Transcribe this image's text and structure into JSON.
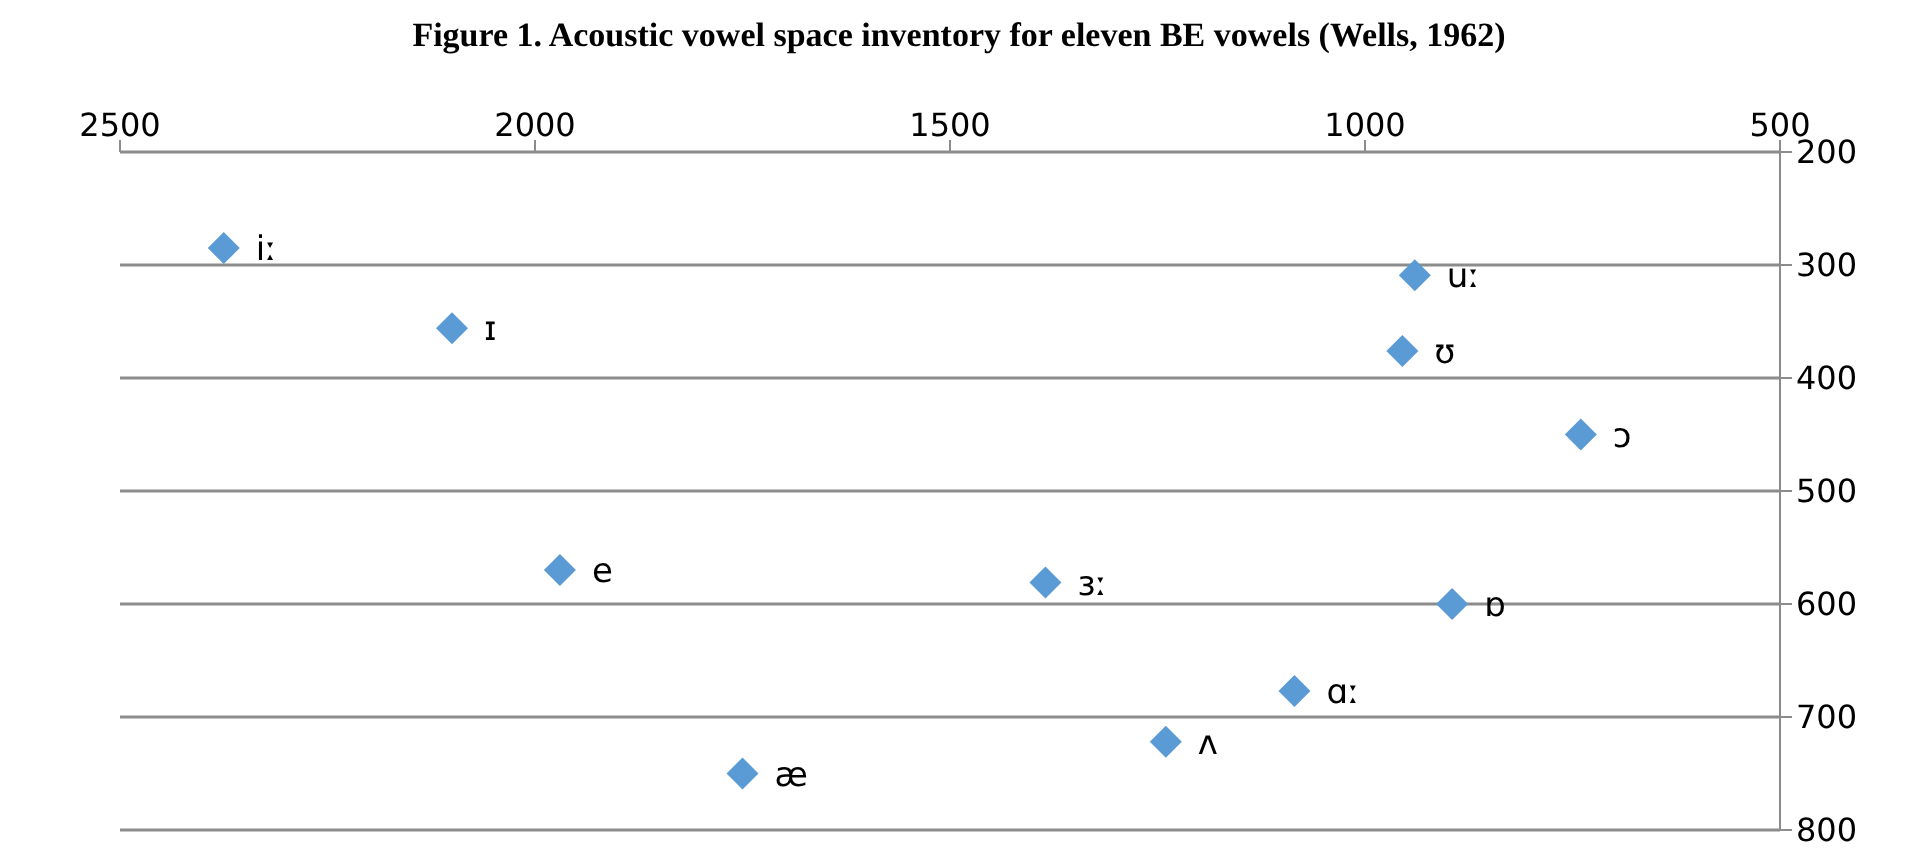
{
  "chart_data": {
    "type": "scatter",
    "title": "Figure 1. Acoustic vowel space inventory for eleven BE vowels (Wells, 1962)",
    "series": [
      {
        "color": "#5b9bd5",
        "x": [
          2375,
          2100,
          1970,
          1750,
          1385,
          1240,
          1085,
          895,
          740,
          955,
          940
        ],
        "values": [
          285,
          356,
          570,
          750,
          581,
          722,
          677,
          600,
          450,
          376,
          309
        ]
      }
    ],
    "annotations": [
      {
        "text": "iː",
        "x": 2375,
        "y": 285
      },
      {
        "text": "ɪ",
        "x": 2100,
        "y": 356
      },
      {
        "text": "e",
        "x": 1970,
        "y": 570
      },
      {
        "text": "æ",
        "x": 1750,
        "y": 750
      },
      {
        "text": "ɜː",
        "x": 1385,
        "y": 581
      },
      {
        "text": "ʌ",
        "x": 1240,
        "y": 722
      },
      {
        "text": "ɑː",
        "x": 1085,
        "y": 677
      },
      {
        "text": "ɒ",
        "x": 895,
        "y": 600
      },
      {
        "text": "ɔ",
        "x": 740,
        "y": 450
      },
      {
        "text": "ʊ",
        "x": 955,
        "y": 376
      },
      {
        "text": "uː",
        "x": 940,
        "y": 309
      }
    ],
    "xlim": [
      2500,
      500
    ],
    "xticks": [
      2500,
      2000,
      1500,
      1000,
      500
    ],
    "ylim": [
      800,
      200
    ],
    "yticks": [
      200,
      300,
      400,
      500,
      600,
      700,
      800
    ],
    "grid": "y",
    "marker": "diamond"
  }
}
